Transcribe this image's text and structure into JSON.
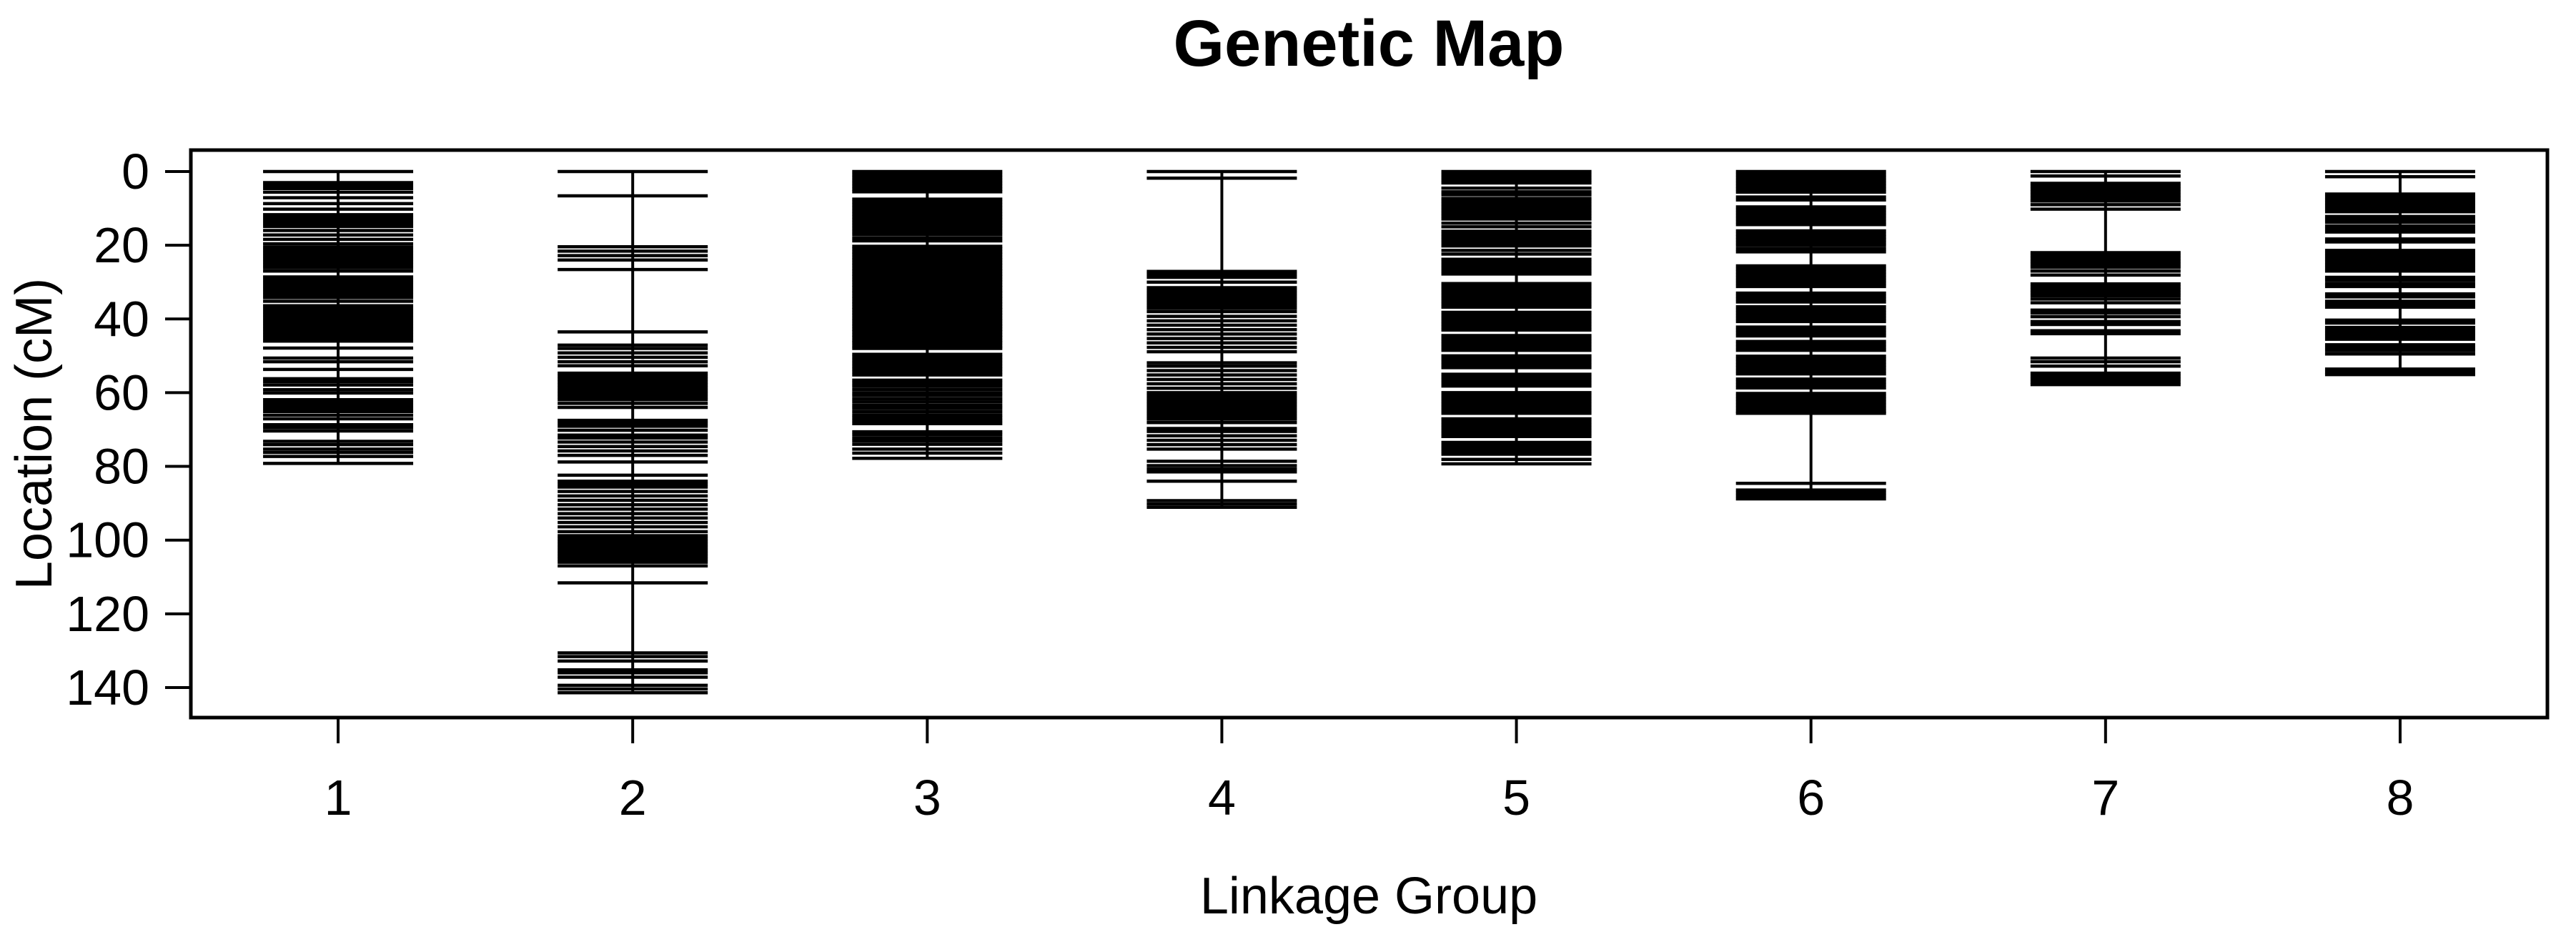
{
  "title": "Genetic Map",
  "colors": {
    "foreground": "#000000",
    "background": "#ffffff"
  },
  "chart_data": {
    "type": "genetic-map",
    "title": "Genetic Map",
    "xlabel": "Linkage Group",
    "ylabel": "Location (cM)",
    "y_unit": "cM",
    "y_axis_inverted": true,
    "y_ticks": [
      0,
      20,
      40,
      60,
      80,
      100,
      120,
      140
    ],
    "ylim": [
      -6,
      148
    ],
    "grid": false,
    "legend": "none",
    "categories": [
      "1",
      "2",
      "3",
      "4",
      "5",
      "6",
      "7",
      "8"
    ],
    "series": [
      {
        "name": "1",
        "length_cM": 79.2,
        "markers": [
          0,
          3.0,
          3.8,
          4.6,
          5.6,
          7.1,
          8.7,
          10.2,
          11.7,
          12.5,
          13.3,
          14.1,
          14.9,
          16.0,
          17.2,
          18.4,
          19.6,
          20.5,
          21.3,
          22.1,
          22.9,
          23.7,
          24.5,
          25.3,
          26.1,
          27.0,
          28.6,
          29.4,
          30.2,
          31.0,
          31.8,
          32.6,
          33.4,
          34.2,
          35.2,
          36.4,
          37.2,
          38.0,
          38.8,
          39.6,
          40.4,
          41.2,
          42.0,
          42.8,
          43.6,
          44.4,
          45.2,
          46.0,
          47.9,
          50.6,
          51.6,
          53.7,
          56.2,
          57.0,
          57.9,
          59.2,
          60.1,
          61.9,
          62.7,
          63.5,
          64.3,
          65.1,
          66.1,
          67.1,
          68.7,
          69.5,
          70.4,
          73.2,
          74.1,
          75.3,
          76.2,
          77.3,
          79.2
        ]
      },
      {
        "name": "2",
        "length_cM": 141.4,
        "markers": [
          0,
          6.6,
          20.4,
          21.6,
          22.8,
          24.0,
          26.6,
          43.5,
          47.1,
          48.0,
          49.2,
          50.4,
          51.6,
          52.7,
          54.7,
          55.5,
          56.3,
          57.1,
          57.9,
          58.7,
          59.5,
          60.3,
          61.1,
          61.9,
          62.9,
          64.0,
          67.5,
          68.3,
          69.1,
          70.2,
          71.5,
          72.3,
          73.4,
          74.6,
          75.8,
          77.0,
          78.8,
          82.4,
          84.0,
          84.8,
          85.6,
          86.8,
          88.0,
          89.2,
          90.4,
          91.6,
          92.8,
          94.0,
          95.2,
          96.4,
          97.7,
          98.8,
          99.6,
          100.4,
          101.2,
          102.0,
          102.8,
          103.6,
          104.4,
          105.2,
          106.0,
          107.0,
          111.6,
          130.6,
          131.6,
          132.8,
          135.2,
          136.0,
          137.2,
          139.4,
          140.4,
          141.4
        ]
      },
      {
        "name": "3",
        "length_cM": 77.8,
        "markers": [
          0,
          0.8,
          1.6,
          2.4,
          3.2,
          4.0,
          4.8,
          5.5,
          7.5,
          8.3,
          9.1,
          9.9,
          10.7,
          11.5,
          12.3,
          13.1,
          13.9,
          14.7,
          15.5,
          16.3,
          17.1,
          18.0,
          18.8,
          20.3,
          21.0,
          21.8,
          22.5,
          23.3,
          24.0,
          24.8,
          25.5,
          26.3,
          27.0,
          27.8,
          28.5,
          29.3,
          30.0,
          30.8,
          31.5,
          32.3,
          33.0,
          33.8,
          34.5,
          35.3,
          36.0,
          36.8,
          37.5,
          38.3,
          39.0,
          39.8,
          40.5,
          41.3,
          42.0,
          42.8,
          43.5,
          44.3,
          45.0,
          45.8,
          46.5,
          47.3,
          48.0,
          49.6,
          50.4,
          51.2,
          52.0,
          52.8,
          53.6,
          54.4,
          55.2,
          56.6,
          57.4,
          58.2,
          59.1,
          60.0,
          60.8,
          61.7,
          62.5,
          63.4,
          64.2,
          65.1,
          66.0,
          66.8,
          67.6,
          68.4,
          70.6,
          71.4,
          72.3,
          73.1,
          74.0,
          75.3,
          76.4,
          77.8
        ]
      },
      {
        "name": "4",
        "length_cM": 91.1,
        "markers": [
          0,
          1.8,
          27.1,
          27.9,
          28.7,
          30.0,
          31.5,
          32.3,
          33.1,
          33.9,
          34.7,
          35.5,
          36.3,
          37.1,
          38.0,
          39.3,
          40.5,
          41.7,
          42.9,
          44.1,
          45.3,
          46.5,
          47.7,
          48.9,
          51.9,
          52.8,
          54.0,
          55.2,
          56.4,
          57.6,
          58.8,
          60.0,
          60.8,
          61.6,
          62.4,
          63.2,
          64.0,
          64.8,
          65.6,
          66.4,
          67.2,
          68.1,
          69.7,
          70.5,
          71.7,
          72.9,
          74.1,
          75.3,
          78.6,
          79.8,
          80.7,
          81.5,
          84.0,
          89.3,
          90.2,
          91.1
        ]
      },
      {
        "name": "5",
        "length_cM": 79.3,
        "markers": [
          0,
          0.8,
          1.6,
          2.4,
          3.1,
          4.5,
          5.5,
          6.3,
          7.3,
          8.1,
          8.9,
          9.7,
          10.5,
          11.3,
          12.1,
          12.9,
          14.0,
          15.0,
          16.2,
          17.0,
          17.8,
          18.6,
          19.4,
          20.2,
          21.4,
          22.4,
          23.8,
          24.6,
          25.4,
          26.2,
          27.0,
          27.8,
          30.4,
          31.2,
          32.0,
          32.8,
          33.6,
          34.4,
          35.2,
          36.0,
          36.8,
          38.2,
          39.0,
          39.8,
          40.6,
          41.4,
          42.2,
          43.0,
          44.5,
          45.3,
          46.1,
          46.9,
          47.7,
          48.5,
          50.0,
          50.8,
          51.6,
          52.4,
          53.2,
          55.0,
          55.8,
          56.6,
          57.4,
          58.2,
          60.0,
          60.8,
          61.6,
          62.4,
          63.2,
          64.0,
          64.8,
          65.6,
          67.1,
          67.9,
          68.7,
          69.5,
          70.3,
          71.1,
          71.9,
          73.5,
          74.3,
          75.1,
          75.9,
          76.7,
          78.1,
          79.3
        ]
      },
      {
        "name": "6",
        "length_cM": 88.8,
        "markers": [
          0,
          0.8,
          1.6,
          2.4,
          3.2,
          4.0,
          4.8,
          5.6,
          6.9,
          7.7,
          9.6,
          10.4,
          11.2,
          12.0,
          12.8,
          13.6,
          14.4,
          16.1,
          16.9,
          17.7,
          18.5,
          19.3,
          20.1,
          21.0,
          21.8,
          25.6,
          26.4,
          27.2,
          28.0,
          28.8,
          29.6,
          30.4,
          31.2,
          33.0,
          33.8,
          34.6,
          35.4,
          36.7,
          37.5,
          38.3,
          39.1,
          39.9,
          40.7,
          42.2,
          43.0,
          43.8,
          44.6,
          46.1,
          46.9,
          47.7,
          48.5,
          50.1,
          50.9,
          51.7,
          52.5,
          53.3,
          54.1,
          54.9,
          56.3,
          57.1,
          57.9,
          58.7,
          60.2,
          61.0,
          61.8,
          62.6,
          63.4,
          64.2,
          65.0,
          65.6,
          84.6,
          86.4,
          87.2,
          88.0,
          88.8
        ]
      },
      {
        "name": "7",
        "length_cM": 57.8,
        "markers": [
          0,
          1.2,
          3.2,
          4.0,
          4.8,
          5.6,
          6.4,
          7.2,
          8.0,
          9.0,
          10.2,
          22.0,
          22.8,
          23.6,
          24.4,
          25.2,
          26.0,
          27.0,
          28.1,
          30.5,
          31.3,
          32.1,
          32.9,
          33.7,
          34.6,
          35.6,
          37.6,
          38.4,
          39.4,
          40.7,
          41.5,
          43.2,
          44.0,
          50.6,
          51.6,
          52.8,
          54.7,
          55.5,
          56.3,
          57.1,
          57.8
        ]
      },
      {
        "name": "8",
        "length_cM": 55.1,
        "markers": [
          0,
          1.4,
          6.1,
          6.9,
          7.7,
          8.5,
          9.3,
          10.1,
          10.9,
          12.2,
          13.0,
          13.8,
          14.8,
          15.6,
          16.4,
          18.3,
          19.1,
          21.4,
          22.2,
          23.0,
          23.8,
          24.6,
          25.4,
          26.2,
          27.0,
          28.7,
          29.5,
          30.4,
          31.2,
          33.2,
          34.0,
          35.2,
          36.0,
          36.8,
          40.3,
          41.1,
          42.3,
          43.1,
          43.9,
          44.7,
          45.5,
          47.0,
          47.8,
          48.6,
          49.5,
          53.6,
          54.4,
          55.1
        ]
      }
    ]
  }
}
